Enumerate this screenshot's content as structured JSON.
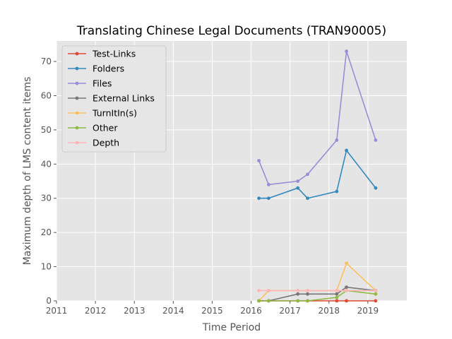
{
  "chart_data": {
    "type": "line",
    "title": "Translating Chinese Legal Documents (TRAN90005)",
    "xlabel": "Time Period",
    "ylabel": "Maximum depth of LMS content items",
    "xlim": [
      2011,
      2020
    ],
    "ylim": [
      0,
      76
    ],
    "xticks": [
      "2011",
      "2012",
      "2013",
      "2014",
      "2015",
      "2016",
      "2017",
      "2018",
      "2019"
    ],
    "yticks": [
      "0",
      "10",
      "20",
      "30",
      "40",
      "50",
      "60",
      "70"
    ],
    "grid": true,
    "legend_position": "top-left",
    "series": [
      {
        "name": "Test-Links",
        "color": "#e24a33",
        "x": [
          2016.2,
          2016.45,
          2017.2,
          2017.45,
          2018.2,
          2018.45,
          2019.2
        ],
        "y": [
          0,
          0,
          0,
          0,
          0,
          0,
          0
        ]
      },
      {
        "name": "Folders",
        "color": "#348abd",
        "x": [
          2016.2,
          2016.45,
          2017.2,
          2017.45,
          2018.2,
          2018.45,
          2019.2
        ],
        "y": [
          30,
          30,
          33,
          30,
          32,
          44,
          33
        ]
      },
      {
        "name": "Files",
        "color": "#988ed5",
        "x": [
          2016.2,
          2016.45,
          2017.2,
          2017.45,
          2018.2,
          2018.45,
          2019.2
        ],
        "y": [
          41,
          34,
          35,
          37,
          47,
          73,
          47
        ]
      },
      {
        "name": "External Links",
        "color": "#777777",
        "x": [
          2016.2,
          2016.45,
          2017.2,
          2017.45,
          2018.2,
          2018.45,
          2019.2
        ],
        "y": [
          0,
          0,
          2,
          2,
          2,
          4,
          3
        ]
      },
      {
        "name": "TurnItIn(s)",
        "color": "#fbc15e",
        "x": [
          2016.2,
          2016.45,
          2017.2,
          2017.45,
          2018.2,
          2018.45,
          2019.2
        ],
        "y": [
          0,
          3,
          3,
          3,
          3,
          11,
          3
        ]
      },
      {
        "name": "Other",
        "color": "#8eba42",
        "x": [
          2016.2,
          2016.45,
          2017.2,
          2017.45,
          2018.2,
          2018.45,
          2019.2
        ],
        "y": [
          0,
          0,
          0,
          0,
          1,
          3,
          2
        ]
      },
      {
        "name": "Depth",
        "color": "#ffb5b8",
        "x": [
          2016.2,
          2016.45,
          2017.2,
          2017.45,
          2018.2,
          2018.45,
          2019.2
        ],
        "y": [
          3,
          3,
          3,
          3,
          3,
          3,
          3
        ]
      }
    ]
  }
}
